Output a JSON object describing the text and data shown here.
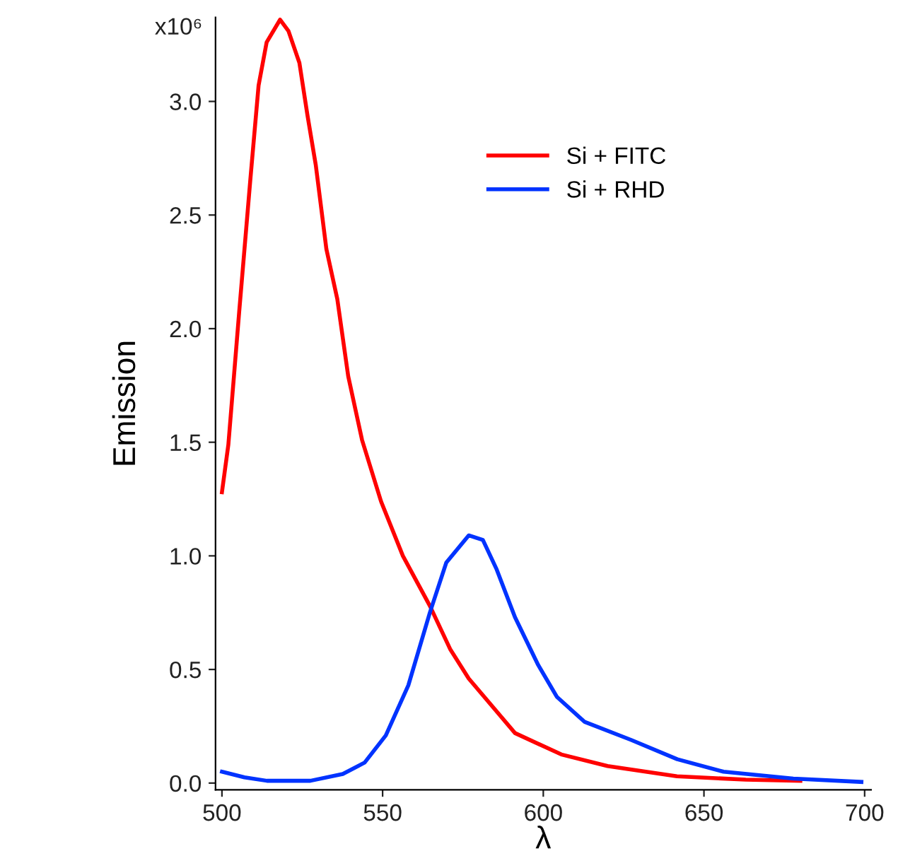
{
  "chart_data": {
    "type": "line",
    "xlabel": "λ",
    "ylabel": "Emission",
    "xlim": [
      498,
      702
    ],
    "ylim": [
      -0.03,
      3.37
    ],
    "xticks": [
      500,
      550,
      600,
      650,
      700
    ],
    "yticks": [
      {
        "value": 0.0,
        "label": "0.0"
      },
      {
        "value": 0.5,
        "label": "0.5"
      },
      {
        "value": 1.0,
        "label": "1.0"
      },
      {
        "value": 1.5,
        "label": "1.5"
      },
      {
        "value": 2.0,
        "label": "2.0"
      },
      {
        "value": 2.5,
        "label": "2.5"
      },
      {
        "value": 3.0,
        "label": "3.0"
      }
    ],
    "annotations": [
      "x10⁶"
    ],
    "grid": false,
    "legend": "top right",
    "marker": "none",
    "line_style": "solid",
    "series": [
      {
        "name": "Si + FITC",
        "color": "#ff0000",
        "x": [
          500,
          502,
          505.4,
          508.8,
          511.4,
          513.9,
          518.1,
          520.7,
          524.1,
          526.6,
          529.2,
          532.5,
          535.9,
          539.3,
          543.6,
          549.5,
          556.3,
          564.7,
          571,
          576.8,
          591.2,
          605.6,
          620,
          641.6,
          663,
          680
        ],
        "values": [
          1.28,
          1.49,
          2.08,
          2.65,
          3.07,
          3.26,
          3.36,
          3.31,
          3.17,
          2.94,
          2.72,
          2.35,
          2.13,
          1.79,
          1.51,
          1.24,
          1.0,
          0.78,
          0.59,
          0.46,
          0.22,
          0.126,
          0.075,
          0.03,
          0.015,
          0.01
        ]
      },
      {
        "name": "Si + RHD",
        "color": "#0033ff",
        "x": [
          500,
          507,
          514,
          527.5,
          537.6,
          544.4,
          551,
          558,
          564.7,
          569.8,
          576.8,
          581.2,
          585.5,
          591.2,
          598.4,
          604.2,
          612.8,
          627.3,
          641.7,
          656.1,
          677.8,
          699
        ],
        "values": [
          0.05,
          0.025,
          0.01,
          0.01,
          0.04,
          0.09,
          0.21,
          0.43,
          0.75,
          0.97,
          1.09,
          1.07,
          0.94,
          0.73,
          0.52,
          0.38,
          0.27,
          0.19,
          0.105,
          0.05,
          0.02,
          0.005
        ]
      }
    ]
  }
}
